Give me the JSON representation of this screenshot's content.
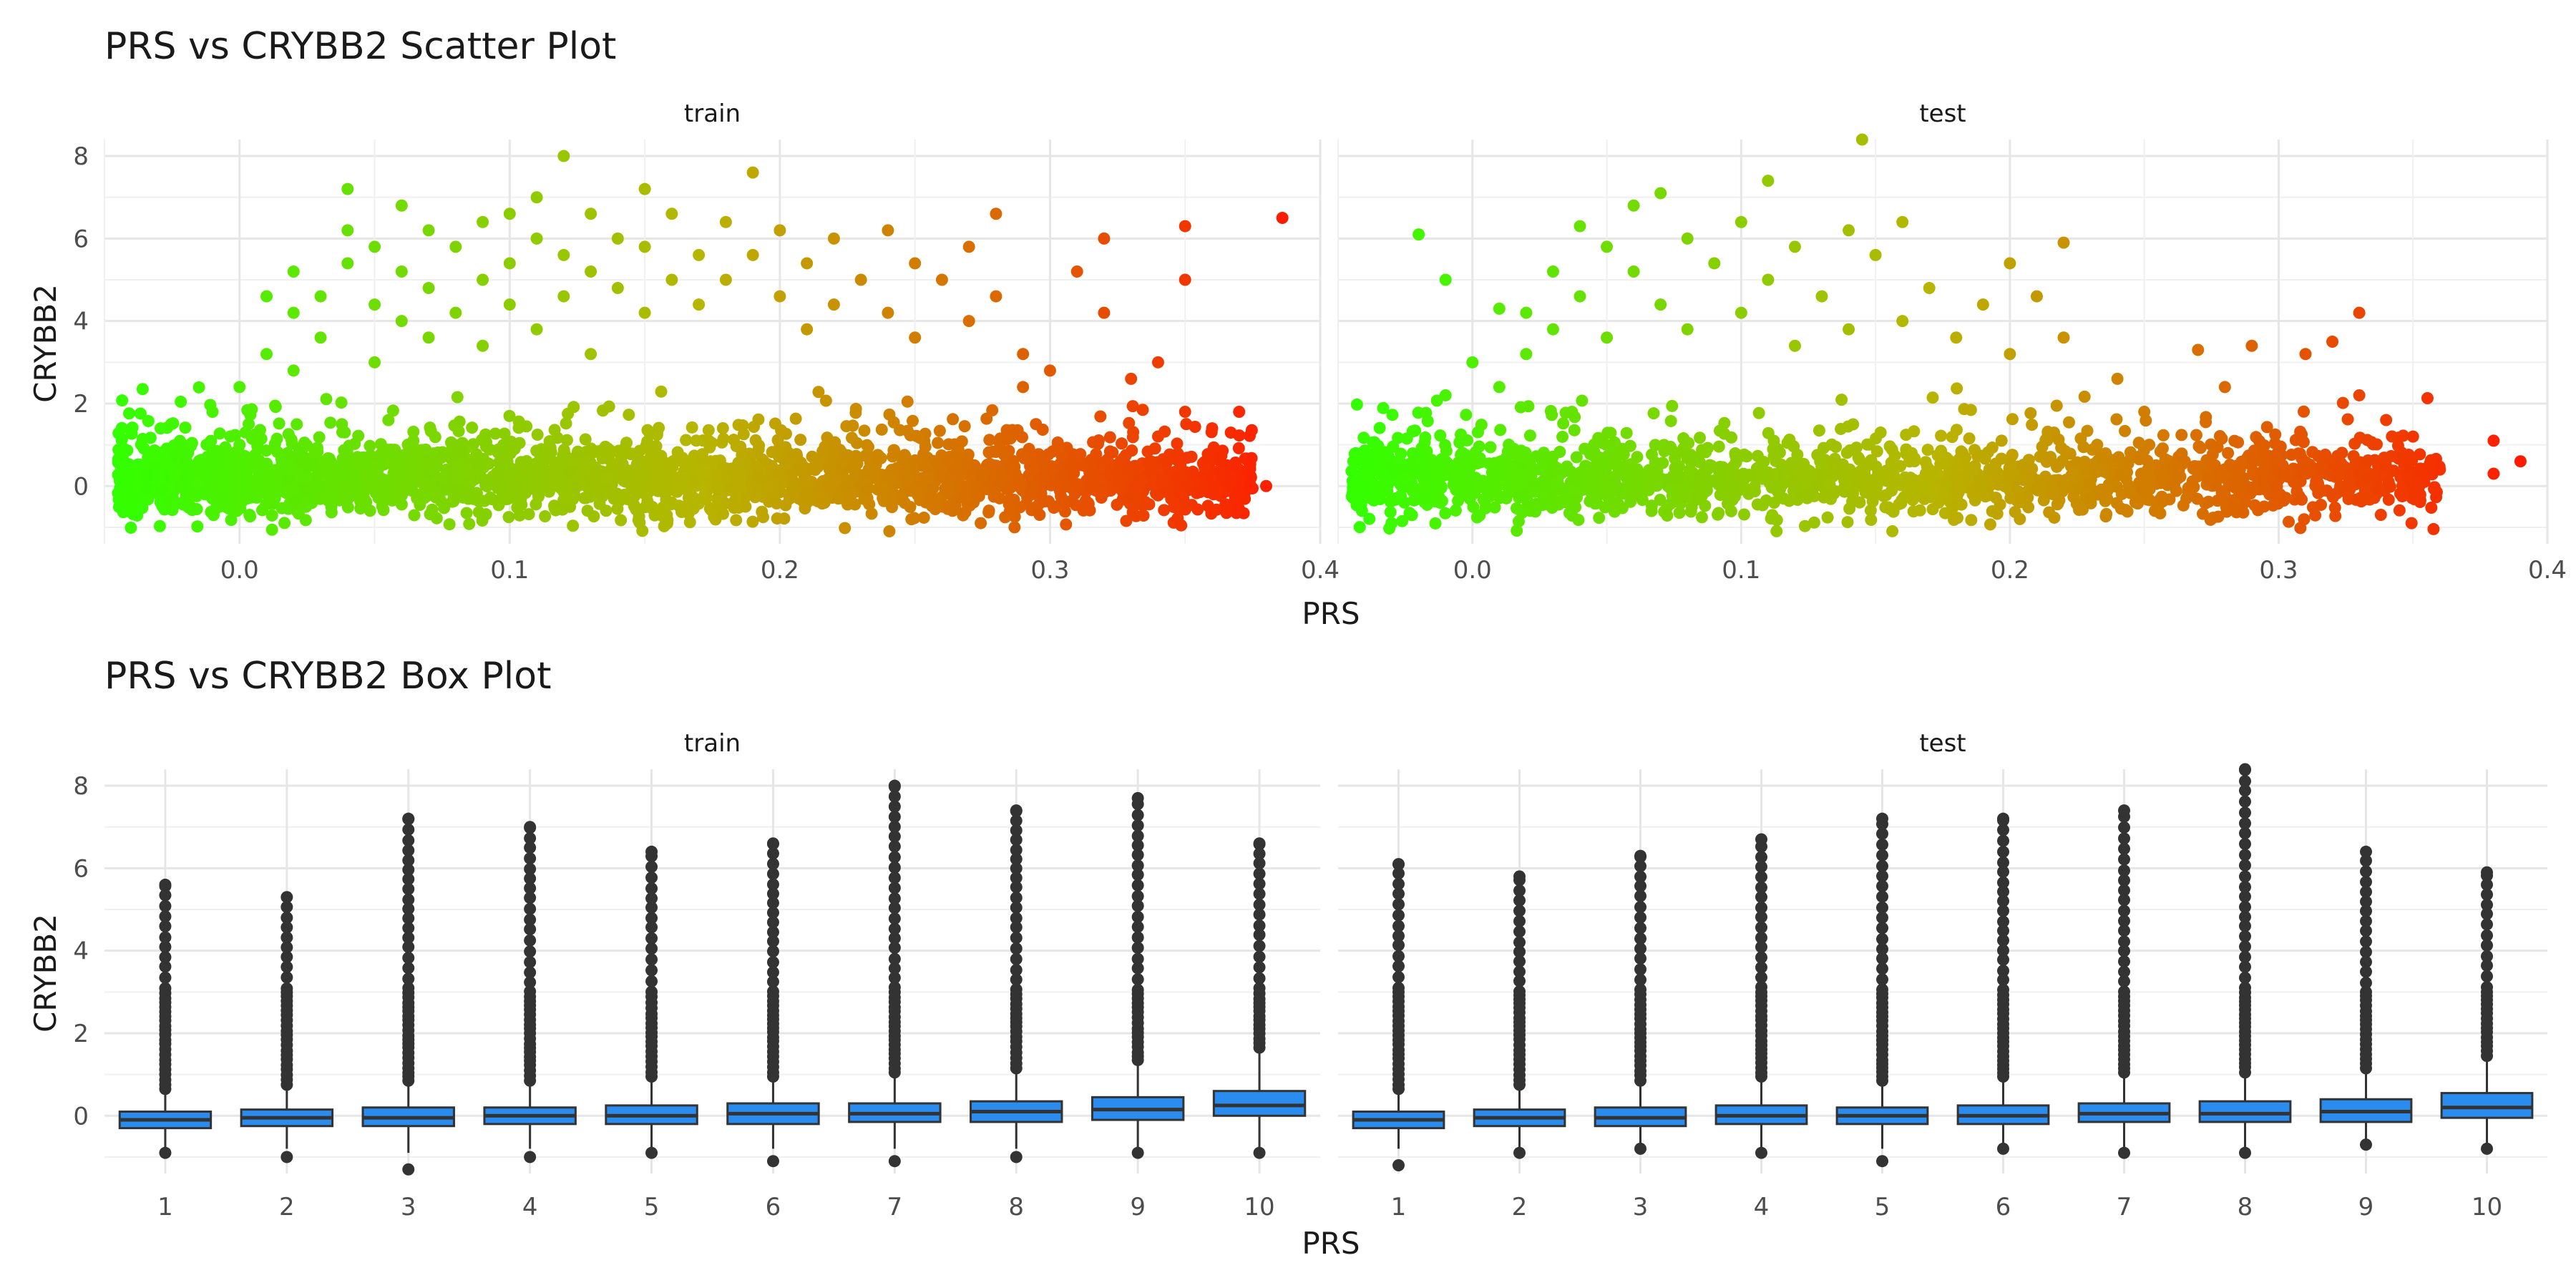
{
  "chart_data": [
    {
      "type": "scatter",
      "title": "PRS vs CRYBB2 Scatter Plot",
      "xlabel": "PRS",
      "ylabel": "CRYBB2",
      "facets": [
        "train",
        "test"
      ],
      "xlim": [
        -0.05,
        0.4
      ],
      "ylim": [
        -1.4,
        8.4
      ],
      "xticks": [
        "0.0",
        "0.1",
        "0.2",
        "0.3",
        "0.4"
      ],
      "yticks": [
        "0",
        "2",
        "4",
        "6",
        "8"
      ],
      "color_scale": {
        "low": "#33ff00",
        "mid": "#b8b400",
        "high": "#ff1a00"
      },
      "grid": true,
      "series": [
        {
          "facet": "train",
          "points": [
            {
              "x": -0.04,
              "y": -0.2
            },
            {
              "x": -0.03,
              "y": 0.3
            },
            {
              "x": -0.02,
              "y": 0.1
            },
            {
              "x": -0.01,
              "y": 0.8
            },
            {
              "x": -0.01,
              "y": 1.8
            },
            {
              "x": 0.0,
              "y": 2.4
            },
            {
              "x": 0.0,
              "y": 1.0
            },
            {
              "x": 0.01,
              "y": 4.6
            },
            {
              "x": 0.01,
              "y": 3.2
            },
            {
              "x": 0.02,
              "y": 5.2
            },
            {
              "x": 0.02,
              "y": 4.2
            },
            {
              "x": 0.02,
              "y": 2.8
            },
            {
              "x": 0.03,
              "y": 4.6
            },
            {
              "x": 0.03,
              "y": 3.6
            },
            {
              "x": 0.04,
              "y": 5.4
            },
            {
              "x": 0.04,
              "y": 6.2
            },
            {
              "x": 0.04,
              "y": 7.2
            },
            {
              "x": 0.05,
              "y": 4.4
            },
            {
              "x": 0.05,
              "y": 5.8
            },
            {
              "x": 0.05,
              "y": 3.0
            },
            {
              "x": 0.06,
              "y": 6.8
            },
            {
              "x": 0.06,
              "y": 5.2
            },
            {
              "x": 0.06,
              "y": 4.0
            },
            {
              "x": 0.07,
              "y": 6.2
            },
            {
              "x": 0.07,
              "y": 4.8
            },
            {
              "x": 0.07,
              "y": 3.6
            },
            {
              "x": 0.08,
              "y": 5.8
            },
            {
              "x": 0.08,
              "y": 4.2
            },
            {
              "x": 0.09,
              "y": 6.4
            },
            {
              "x": 0.09,
              "y": 5.0
            },
            {
              "x": 0.09,
              "y": 3.4
            },
            {
              "x": 0.1,
              "y": 6.6
            },
            {
              "x": 0.1,
              "y": 5.4
            },
            {
              "x": 0.1,
              "y": 4.4
            },
            {
              "x": 0.11,
              "y": 6.0
            },
            {
              "x": 0.11,
              "y": 7.0
            },
            {
              "x": 0.11,
              "y": 3.8
            },
            {
              "x": 0.12,
              "y": 8.0
            },
            {
              "x": 0.12,
              "y": 5.6
            },
            {
              "x": 0.12,
              "y": 4.6
            },
            {
              "x": 0.13,
              "y": 6.6
            },
            {
              "x": 0.13,
              "y": 5.2
            },
            {
              "x": 0.13,
              "y": 3.2
            },
            {
              "x": 0.14,
              "y": 6.0
            },
            {
              "x": 0.14,
              "y": 4.8
            },
            {
              "x": 0.15,
              "y": 7.2
            },
            {
              "x": 0.15,
              "y": 5.8
            },
            {
              "x": 0.15,
              "y": 4.2
            },
            {
              "x": 0.16,
              "y": 6.6
            },
            {
              "x": 0.16,
              "y": 5.0
            },
            {
              "x": 0.17,
              "y": 5.6
            },
            {
              "x": 0.17,
              "y": 4.4
            },
            {
              "x": 0.18,
              "y": 6.4
            },
            {
              "x": 0.18,
              "y": 5.0
            },
            {
              "x": 0.19,
              "y": 7.6
            },
            {
              "x": 0.19,
              "y": 5.6
            },
            {
              "x": 0.2,
              "y": 6.2
            },
            {
              "x": 0.2,
              "y": 4.6
            },
            {
              "x": 0.21,
              "y": 5.4
            },
            {
              "x": 0.21,
              "y": 3.8
            },
            {
              "x": 0.22,
              "y": 6.0
            },
            {
              "x": 0.22,
              "y": 4.4
            },
            {
              "x": 0.23,
              "y": 5.0
            },
            {
              "x": 0.24,
              "y": 6.2
            },
            {
              "x": 0.24,
              "y": 4.2
            },
            {
              "x": 0.25,
              "y": 5.4
            },
            {
              "x": 0.25,
              "y": 3.6
            },
            {
              "x": 0.26,
              "y": 5.0
            },
            {
              "x": 0.27,
              "y": 5.8
            },
            {
              "x": 0.27,
              "y": 4.0
            },
            {
              "x": 0.28,
              "y": 6.6
            },
            {
              "x": 0.28,
              "y": 4.6
            },
            {
              "x": 0.29,
              "y": 3.2
            },
            {
              "x": 0.29,
              "y": 2.4
            },
            {
              "x": 0.3,
              "y": 2.8
            },
            {
              "x": 0.31,
              "y": 5.2
            },
            {
              "x": 0.32,
              "y": 6.0
            },
            {
              "x": 0.32,
              "y": 4.2
            },
            {
              "x": 0.33,
              "y": 2.6
            },
            {
              "x": 0.34,
              "y": 3.0
            },
            {
              "x": 0.35,
              "y": 6.3
            },
            {
              "x": 0.35,
              "y": 5.0
            },
            {
              "x": 0.35,
              "y": 1.8
            },
            {
              "x": 0.36,
              "y": 1.4
            },
            {
              "x": 0.36,
              "y": 0.2
            },
            {
              "x": 0.37,
              "y": 1.8
            },
            {
              "x": 0.37,
              "y": 0.4
            },
            {
              "x": 0.37,
              "y": -0.2
            },
            {
              "x": 0.38,
              "y": 0.0
            },
            {
              "x": 0.386,
              "y": 6.5
            }
          ]
        },
        {
          "facet": "test",
          "points": [
            {
              "x": -0.02,
              "y": 6.1
            },
            {
              "x": -0.01,
              "y": 5.0
            },
            {
              "x": -0.02,
              "y": 0.3
            },
            {
              "x": -0.01,
              "y": 2.2
            },
            {
              "x": 0.0,
              "y": 3.0
            },
            {
              "x": 0.01,
              "y": 4.3
            },
            {
              "x": 0.01,
              "y": 2.4
            },
            {
              "x": 0.02,
              "y": 4.2
            },
            {
              "x": 0.02,
              "y": 3.2
            },
            {
              "x": 0.03,
              "y": 5.2
            },
            {
              "x": 0.03,
              "y": 3.8
            },
            {
              "x": 0.04,
              "y": 6.3
            },
            {
              "x": 0.04,
              "y": 4.6
            },
            {
              "x": 0.05,
              "y": 5.8
            },
            {
              "x": 0.05,
              "y": 3.6
            },
            {
              "x": 0.06,
              "y": 6.8
            },
            {
              "x": 0.06,
              "y": 5.2
            },
            {
              "x": 0.07,
              "y": 7.1
            },
            {
              "x": 0.07,
              "y": 4.4
            },
            {
              "x": 0.08,
              "y": 6.0
            },
            {
              "x": 0.08,
              "y": 3.8
            },
            {
              "x": 0.09,
              "y": 5.4
            },
            {
              "x": 0.1,
              "y": 6.4
            },
            {
              "x": 0.1,
              "y": 4.2
            },
            {
              "x": 0.11,
              "y": 5.0
            },
            {
              "x": 0.11,
              "y": 7.4
            },
            {
              "x": 0.12,
              "y": 5.8
            },
            {
              "x": 0.12,
              "y": 3.4
            },
            {
              "x": 0.13,
              "y": 4.6
            },
            {
              "x": 0.14,
              "y": 6.2
            },
            {
              "x": 0.14,
              "y": 3.8
            },
            {
              "x": 0.145,
              "y": 8.4
            },
            {
              "x": 0.15,
              "y": 5.6
            },
            {
              "x": 0.16,
              "y": 6.4
            },
            {
              "x": 0.16,
              "y": 4.0
            },
            {
              "x": 0.17,
              "y": 4.8
            },
            {
              "x": 0.18,
              "y": 3.6
            },
            {
              "x": 0.19,
              "y": 4.4
            },
            {
              "x": 0.2,
              "y": 5.4
            },
            {
              "x": 0.2,
              "y": 3.2
            },
            {
              "x": 0.21,
              "y": 4.6
            },
            {
              "x": 0.22,
              "y": 5.9
            },
            {
              "x": 0.22,
              "y": 3.6
            },
            {
              "x": 0.24,
              "y": 2.6
            },
            {
              "x": 0.25,
              "y": 1.8
            },
            {
              "x": 0.27,
              "y": 3.3
            },
            {
              "x": 0.28,
              "y": 2.4
            },
            {
              "x": 0.29,
              "y": 3.4
            },
            {
              "x": 0.31,
              "y": 3.2
            },
            {
              "x": 0.32,
              "y": 3.5
            },
            {
              "x": 0.33,
              "y": 4.2
            },
            {
              "x": 0.33,
              "y": 2.2
            },
            {
              "x": 0.34,
              "y": 1.6
            },
            {
              "x": 0.35,
              "y": 1.2
            },
            {
              "x": 0.36,
              "y": 0.4
            },
            {
              "x": 0.38,
              "y": 1.1
            },
            {
              "x": 0.38,
              "y": 0.3
            },
            {
              "x": 0.39,
              "y": 0.6
            }
          ]
        }
      ]
    },
    {
      "type": "box",
      "title": "PRS vs CRYBB2 Box Plot",
      "xlabel": "PRS",
      "ylabel": "CRYBB2",
      "facets": [
        "train",
        "test"
      ],
      "ylim": [
        -1.4,
        8.4
      ],
      "yticks": [
        "0",
        "2",
        "4",
        "6",
        "8"
      ],
      "categories": [
        "1",
        "2",
        "3",
        "4",
        "5",
        "6",
        "7",
        "8",
        "9",
        "10"
      ],
      "box_fill": "#2b8cf0",
      "grid": true,
      "series": [
        {
          "facet": "train",
          "boxes": [
            {
              "q1": -0.3,
              "median": -0.1,
              "q3": 0.1,
              "whisker_low": -0.8,
              "whisker_high": 0.6,
              "outlier_max": 5.6,
              "outlier_min": -0.9
            },
            {
              "q1": -0.25,
              "median": -0.05,
              "q3": 0.15,
              "whisker_low": -0.8,
              "whisker_high": 0.7,
              "outlier_max": 5.3,
              "outlier_min": -1.0
            },
            {
              "q1": -0.25,
              "median": -0.05,
              "q3": 0.2,
              "whisker_low": -0.9,
              "whisker_high": 0.8,
              "outlier_max": 7.2,
              "outlier_min": -1.3
            },
            {
              "q1": -0.2,
              "median": 0.0,
              "q3": 0.2,
              "whisker_low": -0.8,
              "whisker_high": 0.8,
              "outlier_max": 7.0,
              "outlier_min": -1.0
            },
            {
              "q1": -0.2,
              "median": 0.0,
              "q3": 0.25,
              "whisker_low": -0.8,
              "whisker_high": 0.9,
              "outlier_max": 6.4,
              "outlier_min": -0.9
            },
            {
              "q1": -0.2,
              "median": 0.05,
              "q3": 0.3,
              "whisker_low": -0.8,
              "whisker_high": 0.9,
              "outlier_max": 6.6,
              "outlier_min": -1.1
            },
            {
              "q1": -0.15,
              "median": 0.05,
              "q3": 0.3,
              "whisker_low": -0.8,
              "whisker_high": 1.0,
              "outlier_max": 8.0,
              "outlier_min": -1.1
            },
            {
              "q1": -0.15,
              "median": 0.1,
              "q3": 0.35,
              "whisker_low": -0.8,
              "whisker_high": 1.1,
              "outlier_max": 7.4,
              "outlier_min": -1.0
            },
            {
              "q1": -0.1,
              "median": 0.15,
              "q3": 0.45,
              "whisker_low": -0.8,
              "whisker_high": 1.3,
              "outlier_max": 7.7,
              "outlier_min": -0.9
            },
            {
              "q1": 0.0,
              "median": 0.25,
              "q3": 0.6,
              "whisker_low": -0.8,
              "whisker_high": 1.6,
              "outlier_max": 6.6,
              "outlier_min": -0.9
            }
          ]
        },
        {
          "facet": "test",
          "boxes": [
            {
              "q1": -0.3,
              "median": -0.1,
              "q3": 0.1,
              "whisker_low": -0.8,
              "whisker_high": 0.6,
              "outlier_max": 6.1,
              "outlier_min": -1.2
            },
            {
              "q1": -0.25,
              "median": -0.05,
              "q3": 0.15,
              "whisker_low": -0.8,
              "whisker_high": 0.7,
              "outlier_max": 5.8,
              "outlier_min": -0.9
            },
            {
              "q1": -0.25,
              "median": -0.05,
              "q3": 0.2,
              "whisker_low": -0.8,
              "whisker_high": 0.8,
              "outlier_max": 6.3,
              "outlier_min": -0.8
            },
            {
              "q1": -0.2,
              "median": 0.0,
              "q3": 0.25,
              "whisker_low": -0.9,
              "whisker_high": 0.9,
              "outlier_max": 6.7,
              "outlier_min": -0.9
            },
            {
              "q1": -0.2,
              "median": 0.0,
              "q3": 0.2,
              "whisker_low": -0.8,
              "whisker_high": 0.8,
              "outlier_max": 7.2,
              "outlier_min": -1.1
            },
            {
              "q1": -0.2,
              "median": 0.0,
              "q3": 0.25,
              "whisker_low": -0.8,
              "whisker_high": 0.9,
              "outlier_max": 7.2,
              "outlier_min": -0.8
            },
            {
              "q1": -0.15,
              "median": 0.05,
              "q3": 0.3,
              "whisker_low": -0.8,
              "whisker_high": 1.0,
              "outlier_max": 7.4,
              "outlier_min": -0.9
            },
            {
              "q1": -0.15,
              "median": 0.05,
              "q3": 0.35,
              "whisker_low": -0.8,
              "whisker_high": 1.0,
              "outlier_max": 8.4,
              "outlier_min": -0.9
            },
            {
              "q1": -0.15,
              "median": 0.1,
              "q3": 0.4,
              "whisker_low": -0.7,
              "whisker_high": 1.1,
              "outlier_max": 6.4,
              "outlier_min": -0.7
            },
            {
              "q1": -0.05,
              "median": 0.2,
              "q3": 0.55,
              "whisker_low": -0.8,
              "whisker_high": 1.4,
              "outlier_max": 5.9,
              "outlier_min": -0.8
            }
          ]
        }
      ]
    }
  ]
}
